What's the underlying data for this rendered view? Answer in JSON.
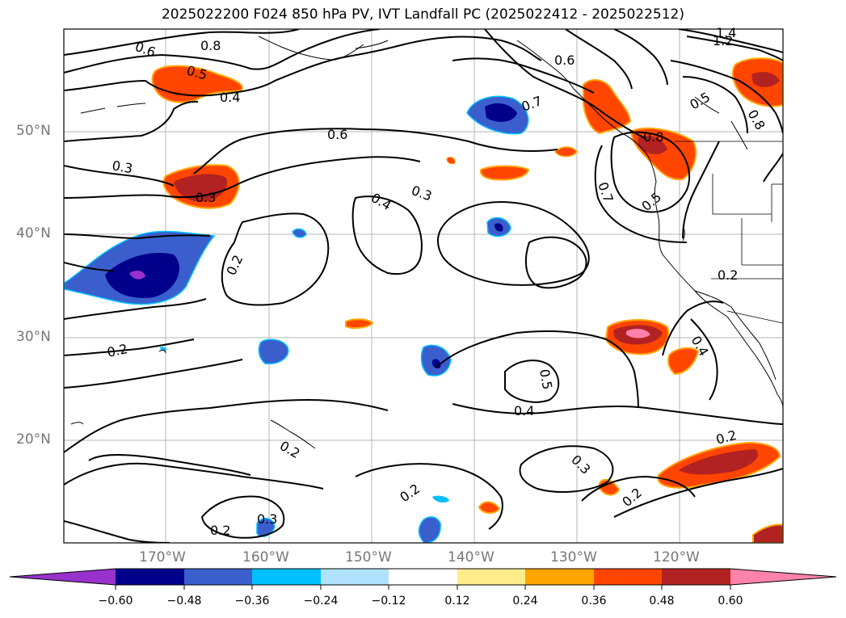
{
  "title": "2025022200 F024 850 hPa PV, IVT Landfall PC (2025022412 - 2025022512)",
  "lat_labels": [
    "50°N",
    "40°N",
    "30°N",
    "20°N"
  ],
  "lon_labels": [
    "170°W",
    "160°W",
    "150°W",
    "140°W",
    "130°W",
    "120°W"
  ],
  "colorbar": {
    "ticks": [
      "−0.60",
      "−0.48",
      "−0.36",
      "−0.24",
      "−0.12",
      "0.12",
      "0.24",
      "0.36",
      "0.48",
      "0.60"
    ],
    "colors": [
      "#9932cc",
      "#00008b",
      "#3a5fcd",
      "#00bfff",
      "#b0e2ff",
      "#ffffff",
      "#ffec8b",
      "#ffa500",
      "#ff4500",
      "#b22222",
      "#ff82ab"
    ]
  },
  "contour_labels": [
    "0.6",
    "0.8",
    "0.5",
    "0.4",
    "0.6",
    "0.3",
    "0.3",
    "0.4",
    "0.3",
    "0.2",
    "0.2",
    "0.6",
    "0.7",
    "0.8",
    "0.7",
    "0.5",
    "1.2",
    "1.4",
    "0.5",
    "0.8",
    "0.2",
    "0.4",
    "0.5",
    "0.4",
    "0.3",
    "0.2",
    "0.2",
    "0.2",
    "0.3",
    "0.2",
    "0.2"
  ]
}
